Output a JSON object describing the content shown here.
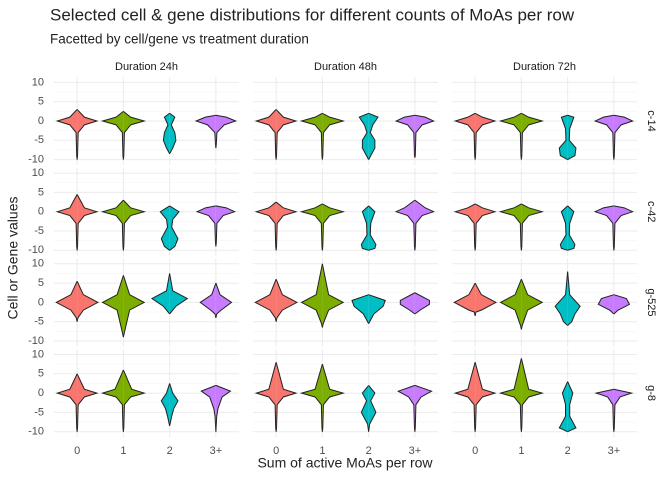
{
  "chart_data": {
    "type": "violin",
    "title": "Selected cell & gene distributions for different counts of MoAs per row",
    "subtitle": "Facetted by cell/gene vs treatment duration",
    "xlabel": "Sum of active MoAs per row",
    "ylabel": "Cell or Gene values",
    "categories": [
      "0",
      "1",
      "2",
      "3+"
    ],
    "colors": [
      "#F8766D",
      "#7CAE00",
      "#00BFC4",
      "#C77CFF"
    ],
    "columns": [
      "Duration 24h",
      "Duration 48h",
      "Duration 72h"
    ],
    "rows": [
      "c-14",
      "c-42",
      "g-525",
      "g-8"
    ],
    "ylim": [
      -11.4,
      11.4
    ],
    "yticks": [
      -10,
      -5,
      0,
      5,
      10
    ],
    "grid": true,
    "panels": [
      {
        "violins": [
          {
            "y": [
              3,
              1,
              0,
              -1,
              -3,
              -9,
              -10
            ],
            "density": [
              0,
              0.35,
              0.95,
              0.35,
              0.05,
              0.02,
              0
            ]
          },
          {
            "y": [
              2.5,
              1,
              0,
              -1,
              -3,
              -9,
              -10
            ],
            "density": [
              0,
              0.35,
              1,
              0.35,
              0.05,
              0.02,
              0
            ]
          },
          {
            "y": [
              2,
              1,
              -1,
              -3,
              -5,
              -7,
              -8.5
            ],
            "density": [
              0,
              0.25,
              0.08,
              0.25,
              0.3,
              0.15,
              0
            ]
          },
          {
            "y": [
              1.5,
              1,
              0,
              -1,
              -3,
              -6,
              -7
            ],
            "density": [
              0,
              0.5,
              0.95,
              0.4,
              0.05,
              0.02,
              0
            ]
          }
        ]
      },
      {
        "violins": [
          {
            "y": [
              3,
              1,
              0,
              -1,
              -3,
              -9,
              -10
            ],
            "density": [
              0,
              0.35,
              0.95,
              0.35,
              0.05,
              0.02,
              0
            ]
          },
          {
            "y": [
              2,
              1,
              0,
              -1,
              -3,
              -9,
              -10
            ],
            "density": [
              0,
              0.35,
              1,
              0.35,
              0.05,
              0.02,
              0
            ]
          },
          {
            "y": [
              2,
              1,
              -1,
              -3,
              -5,
              -7,
              -10
            ],
            "density": [
              0,
              0.45,
              0.2,
              0.08,
              0.3,
              0.3,
              0
            ]
          },
          {
            "y": [
              1.5,
              1,
              0,
              -1,
              -3,
              -9,
              -9.5
            ],
            "density": [
              0,
              0.5,
              0.9,
              0.35,
              0.05,
              0.02,
              0
            ]
          }
        ]
      },
      {
        "violins": [
          {
            "y": [
              2,
              1,
              0,
              -1,
              -3,
              -9,
              -10
            ],
            "density": [
              0,
              0.35,
              0.95,
              0.35,
              0.05,
              0.02,
              0
            ]
          },
          {
            "y": [
              2,
              1,
              0,
              -1,
              -3,
              -9,
              -10
            ],
            "density": [
              0,
              0.35,
              1,
              0.35,
              0.05,
              0.02,
              0
            ]
          },
          {
            "y": [
              1.5,
              1,
              -2,
              -5,
              -7,
              -9,
              -10
            ],
            "density": [
              0,
              0.3,
              0.1,
              0.08,
              0.4,
              0.35,
              0
            ]
          },
          {
            "y": [
              1.5,
              1,
              0,
              -1,
              -3,
              -9,
              -10
            ],
            "density": [
              0,
              0.5,
              0.9,
              0.35,
              0.05,
              0.02,
              0
            ]
          }
        ]
      },
      {
        "violins": [
          {
            "y": [
              4.5,
              1,
              0,
              -1,
              -3,
              -9,
              -10
            ],
            "density": [
              0,
              0.35,
              0.95,
              0.35,
              0.05,
              0.02,
              0
            ]
          },
          {
            "y": [
              3,
              1,
              0,
              -1,
              -3,
              -9,
              -10
            ],
            "density": [
              0,
              0.35,
              1,
              0.35,
              0.05,
              0.02,
              0
            ]
          },
          {
            "y": [
              1.5,
              0,
              -2,
              -4,
              -7,
              -9,
              -10
            ],
            "density": [
              0,
              0.45,
              0.15,
              0.1,
              0.4,
              0.25,
              0
            ]
          },
          {
            "y": [
              1.5,
              1,
              0,
              -1,
              -3,
              -8,
              -9
            ],
            "density": [
              0,
              0.5,
              0.9,
              0.35,
              0.05,
              0.02,
              0
            ]
          }
        ]
      },
      {
        "violins": [
          {
            "y": [
              2.5,
              1,
              0,
              -1,
              -3,
              -9,
              -10
            ],
            "density": [
              0,
              0.35,
              0.95,
              0.35,
              0.05,
              0.02,
              0
            ]
          },
          {
            "y": [
              2,
              1,
              0,
              -1,
              -3,
              -9,
              -10
            ],
            "density": [
              0,
              0.35,
              1,
              0.35,
              0.05,
              0.02,
              0
            ]
          },
          {
            "y": [
              1.5,
              0,
              -3,
              -6,
              -8.5,
              -9.5,
              -10
            ],
            "density": [
              0,
              0.3,
              0.1,
              0.08,
              0.35,
              0.3,
              0
            ]
          },
          {
            "y": [
              3,
              1,
              0,
              -1,
              -3,
              -9,
              -10
            ],
            "density": [
              0,
              0.5,
              0.9,
              0.35,
              0.05,
              0.02,
              0
            ]
          }
        ]
      },
      {
        "violins": [
          {
            "y": [
              2,
              1,
              0,
              -1,
              -3,
              -9,
              -10
            ],
            "density": [
              0,
              0.35,
              0.95,
              0.35,
              0.05,
              0.02,
              0
            ]
          },
          {
            "y": [
              2,
              1,
              0,
              -1,
              -3,
              -9,
              -10
            ],
            "density": [
              0,
              0.35,
              1,
              0.35,
              0.05,
              0.02,
              0
            ]
          },
          {
            "y": [
              1.5,
              0,
              -3,
              -6,
              -8.5,
              -9.5,
              -10
            ],
            "density": [
              0,
              0.3,
              0.1,
              0.08,
              0.35,
              0.3,
              0
            ]
          },
          {
            "y": [
              1.5,
              1,
              0,
              -1,
              -3,
              -9,
              -10
            ],
            "density": [
              0,
              0.5,
              0.9,
              0.35,
              0.05,
              0.02,
              0
            ]
          }
        ]
      },
      {
        "violins": [
          {
            "y": [
              5.5,
              2,
              0,
              -2,
              -4,
              -5
            ],
            "density": [
              0,
              0.3,
              1,
              0.3,
              0.04,
              0
            ]
          },
          {
            "y": [
              7,
              2,
              0,
              -2,
              -8,
              -9
            ],
            "density": [
              0,
              0.3,
              1,
              0.3,
              0.04,
              0
            ]
          },
          {
            "y": [
              7.5,
              3,
              1,
              -1,
              -3
            ],
            "density": [
              0,
              0.15,
              0.85,
              0.3,
              0
            ]
          },
          {
            "y": [
              5,
              2,
              0,
              -2,
              -3,
              -4
            ],
            "density": [
              0,
              0.2,
              0.75,
              0.25,
              0.04,
              0
            ]
          }
        ]
      },
      {
        "violins": [
          {
            "y": [
              6,
              2,
              0,
              -2,
              -4,
              -5
            ],
            "density": [
              0,
              0.3,
              1,
              0.3,
              0.04,
              0
            ]
          },
          {
            "y": [
              10,
              2,
              0,
              -2,
              -5.5,
              -6.5
            ],
            "density": [
              0,
              0.3,
              1,
              0.3,
              0.04,
              0
            ]
          },
          {
            "y": [
              2,
              0.5,
              -1,
              -3,
              -5.5
            ],
            "density": [
              0,
              0.8,
              0.7,
              0.25,
              0
            ]
          },
          {
            "y": [
              2.5,
              0.5,
              -0.5,
              -2,
              -3
            ],
            "density": [
              0,
              0.7,
              0.7,
              0.25,
              0
            ]
          }
        ]
      },
      {
        "violins": [
          {
            "y": [
              5,
              2,
              0,
              -2,
              -2.5,
              -3.5
            ],
            "density": [
              0,
              0.3,
              1,
              0.3,
              0.04,
              0
            ]
          },
          {
            "y": [
              6,
              2,
              0,
              -2,
              -6,
              -7
            ],
            "density": [
              0,
              0.3,
              1,
              0.3,
              0.04,
              0
            ]
          },
          {
            "y": [
              8,
              2,
              -1,
              -3,
              -5,
              -6
            ],
            "density": [
              0,
              0.1,
              0.6,
              0.35,
              0.2,
              0
            ]
          },
          {
            "y": [
              2,
              1,
              -0.5,
              -2,
              -3
            ],
            "density": [
              0,
              0.6,
              0.75,
              0.2,
              0
            ]
          }
        ]
      },
      {
        "violins": [
          {
            "y": [
              5,
              1,
              0,
              -1,
              -3,
              -9,
              -10
            ],
            "density": [
              0,
              0.35,
              0.95,
              0.35,
              0.05,
              0.02,
              0
            ]
          },
          {
            "y": [
              6,
              1,
              0,
              -1,
              -3,
              -9,
              -10
            ],
            "density": [
              0,
              0.4,
              1,
              0.35,
              0.05,
              0.02,
              0
            ]
          },
          {
            "y": [
              2.5,
              0,
              -2,
              -4,
              -6,
              -8.5
            ],
            "density": [
              0,
              0.15,
              0.4,
              0.2,
              0.1,
              0
            ]
          },
          {
            "y": [
              2,
              0.5,
              -1,
              -4,
              -6,
              -10
            ],
            "density": [
              0,
              0.7,
              0.3,
              0.1,
              0.04,
              0
            ]
          }
        ]
      },
      {
        "violins": [
          {
            "y": [
              8,
              1,
              0,
              -1,
              -3,
              -9,
              -10
            ],
            "density": [
              0,
              0.35,
              0.95,
              0.35,
              0.05,
              0.02,
              0
            ]
          },
          {
            "y": [
              7.5,
              1,
              0,
              -1,
              -3,
              -9,
              -10
            ],
            "density": [
              0,
              0.35,
              1,
              0.35,
              0.05,
              0.02,
              0
            ]
          },
          {
            "y": [
              2,
              0,
              -2,
              -5,
              -8,
              -10
            ],
            "density": [
              0,
              0.3,
              0.1,
              0.35,
              0.05,
              0
            ]
          },
          {
            "y": [
              2,
              0.5,
              -1,
              -3,
              -9,
              -10
            ],
            "density": [
              0,
              0.8,
              0.3,
              0.05,
              0.02,
              0
            ]
          }
        ]
      },
      {
        "violins": [
          {
            "y": [
              8,
              1,
              0,
              -1,
              -3,
              -9,
              -10
            ],
            "density": [
              0,
              0.35,
              0.95,
              0.35,
              0.05,
              0.02,
              0
            ]
          },
          {
            "y": [
              9,
              1,
              0,
              -1,
              -3,
              -9,
              -10
            ],
            "density": [
              0,
              0.35,
              1,
              0.35,
              0.05,
              0.02,
              0
            ]
          },
          {
            "y": [
              3,
              0,
              -3,
              -6,
              -9,
              -10
            ],
            "density": [
              0,
              0.25,
              0.1,
              0.1,
              0.4,
              0
            ]
          },
          {
            "y": [
              1,
              0,
              -1,
              -3,
              -9,
              -10
            ],
            "density": [
              0,
              0.85,
              0.3,
              0.05,
              0.02,
              0
            ]
          }
        ]
      }
    ]
  }
}
